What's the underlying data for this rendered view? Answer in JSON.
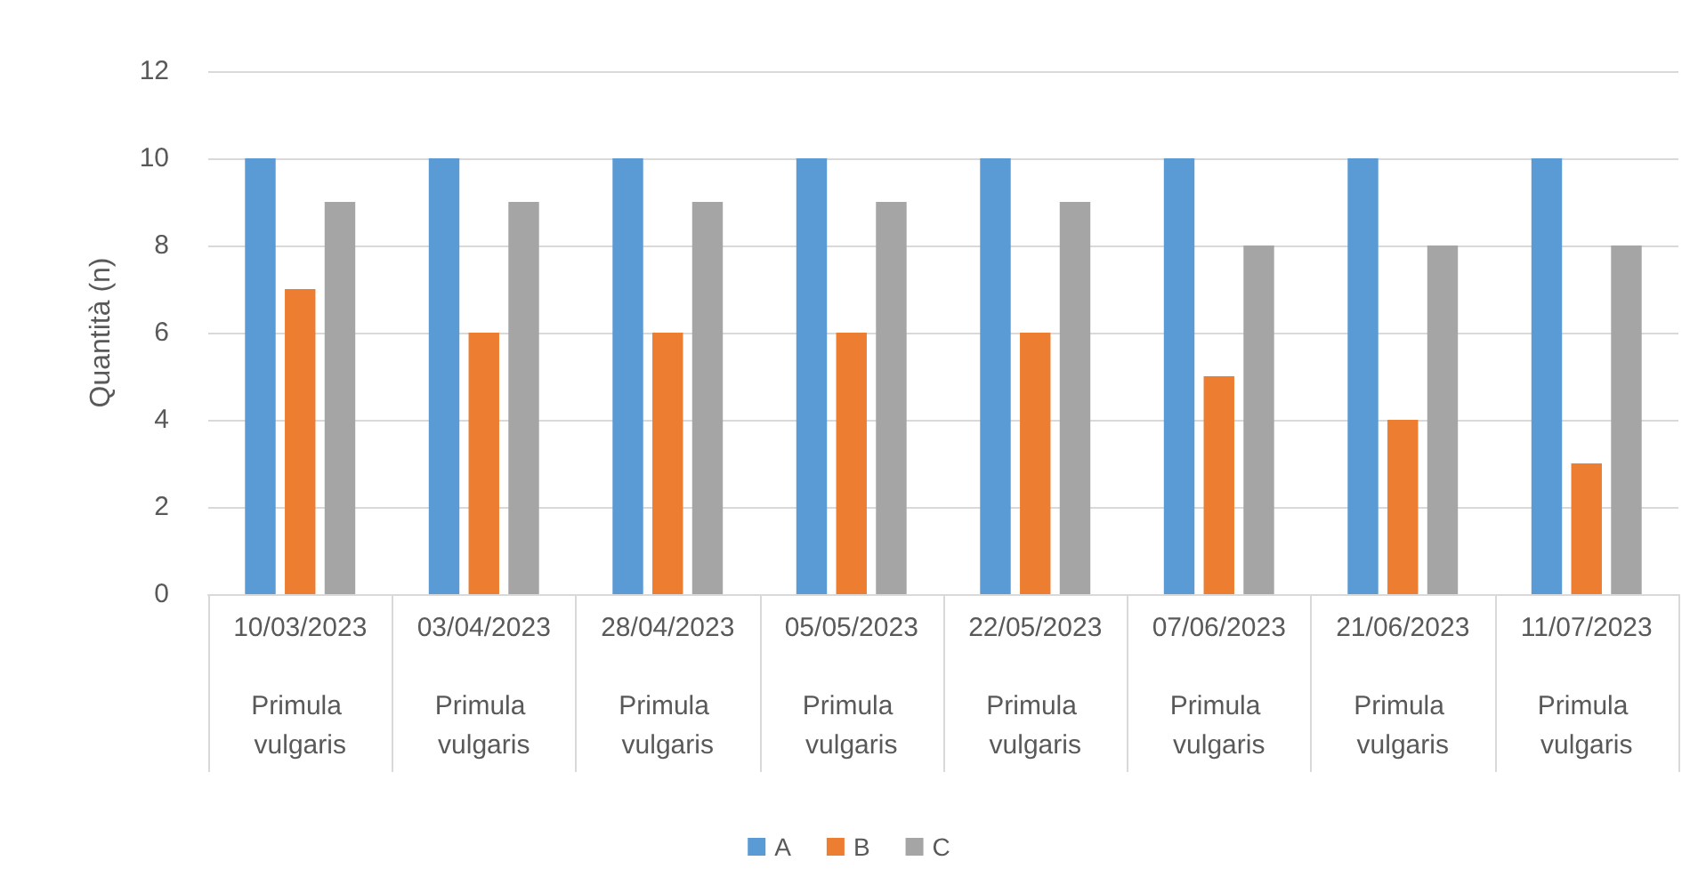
{
  "chart_data": {
    "type": "bar",
    "ylabel": "Quantità (n)",
    "categories": [
      "10/03/2023\nPrimula vulgaris",
      "03/04/2023\nPrimula vulgaris",
      "28/04/2023\nPrimula vulgaris",
      "05/05/2023\nPrimula vulgaris",
      "22/05/2023\nPrimula vulgaris",
      "07/06/2023\nPrimula vulgaris",
      "21/06/2023\nPrimula vulgaris",
      "11/07/2023\nPrimula vulgaris"
    ],
    "series": [
      {
        "name": "A",
        "color": "#5b9bd5",
        "values": [
          10,
          10,
          10,
          10,
          10,
          10,
          10,
          10
        ]
      },
      {
        "name": "B",
        "color": "#ed7d31",
        "values": [
          7,
          6,
          6,
          6,
          6,
          5,
          4,
          3
        ]
      },
      {
        "name": "C",
        "color": "#a5a5a5",
        "values": [
          9,
          9,
          9,
          9,
          9,
          8,
          8,
          8
        ]
      }
    ],
    "ylim": [
      0,
      12
    ],
    "yticks": [
      0,
      2,
      4,
      6,
      8,
      10,
      12
    ],
    "grid": "y",
    "legend": "bottom"
  }
}
